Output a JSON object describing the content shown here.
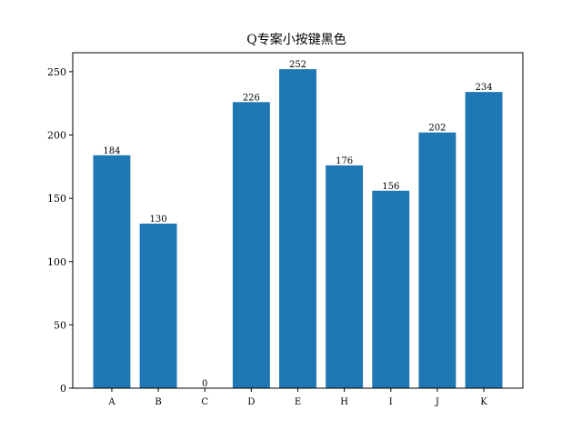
{
  "chart_data": {
    "type": "bar",
    "title": "Q专案小按键黑色",
    "xlabel": "",
    "ylabel": "",
    "categories": [
      "A",
      "B",
      "C",
      "D",
      "E",
      "H",
      "I",
      "J",
      "K"
    ],
    "values": [
      184,
      130,
      0,
      226,
      252,
      176,
      156,
      202,
      234
    ],
    "data_labels": [
      "184",
      "130",
      "0",
      "226",
      "252",
      "176",
      "156",
      "202",
      "234"
    ],
    "ylim": [
      0,
      265
    ],
    "yticks": [
      0,
      50,
      100,
      150,
      200,
      250
    ],
    "ytick_labels": [
      "0",
      "50",
      "100",
      "150",
      "200",
      "250"
    ],
    "grid": false,
    "legend": "none",
    "bar_color": "#1f77b4"
  }
}
